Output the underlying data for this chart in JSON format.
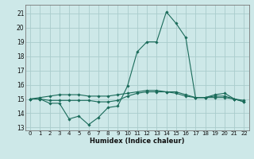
{
  "xlabel": "Humidex (Indice chaleur)",
  "bg_color": "#cde8e8",
  "grid_color": "#aacccc",
  "line_color": "#1a6b5a",
  "xlim": [
    -0.5,
    22.5
  ],
  "ylim": [
    12.8,
    21.6
  ],
  "yticks": [
    13,
    14,
    15,
    16,
    17,
    18,
    19,
    20,
    21
  ],
  "xticks": [
    0,
    1,
    2,
    3,
    4,
    5,
    6,
    7,
    8,
    9,
    10,
    11,
    12,
    13,
    14,
    15,
    16,
    17,
    18,
    19,
    20,
    21,
    22
  ],
  "series": [
    [
      15.0,
      15.0,
      14.7,
      14.7,
      13.6,
      13.8,
      13.2,
      13.7,
      14.4,
      14.5,
      15.9,
      18.3,
      19.0,
      19.0,
      21.1,
      20.3,
      19.3,
      15.1,
      15.1,
      15.3,
      15.4,
      15.0,
      14.8
    ],
    [
      15.0,
      15.0,
      14.9,
      14.9,
      14.9,
      14.9,
      14.9,
      14.8,
      14.8,
      14.9,
      15.2,
      15.4,
      15.5,
      15.5,
      15.5,
      15.5,
      15.3,
      15.1,
      15.1,
      15.2,
      15.2,
      15.0,
      14.8
    ],
    [
      15.0,
      15.1,
      15.2,
      15.3,
      15.3,
      15.3,
      15.2,
      15.2,
      15.2,
      15.3,
      15.4,
      15.5,
      15.6,
      15.6,
      15.5,
      15.4,
      15.2,
      15.1,
      15.1,
      15.1,
      15.1,
      15.0,
      14.9
    ]
  ]
}
